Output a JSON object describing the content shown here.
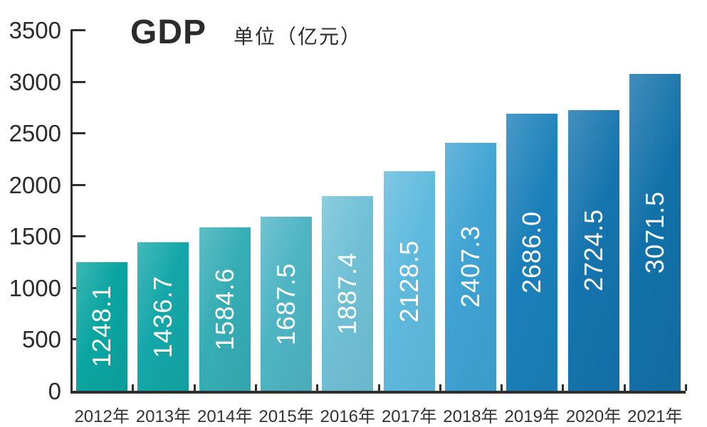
{
  "header": {
    "title": "GDP",
    "unit": "单位（亿元）"
  },
  "colors": {
    "axis": "#2e2e2e",
    "tick_label": "#2b2b2b",
    "x_label": "#333333",
    "bar_value_label": "#ffffff",
    "background": "#ffffff"
  },
  "chart_data": {
    "type": "bar",
    "title": "GDP",
    "unit_label": "单位（亿元）",
    "categories": [
      "2012年",
      "2013年",
      "2014年",
      "2015年",
      "2016年",
      "2017年",
      "2018年",
      "2019年",
      "2020年",
      "2021年"
    ],
    "values": [
      1248.1,
      1436.7,
      1584.6,
      1687.5,
      1887.4,
      2128.5,
      2407.3,
      2686.0,
      2724.5,
      3071.5
    ],
    "value_labels": [
      "1248.1",
      "1436.7",
      "1584.6",
      "1687.5",
      "1887.4",
      "2128.5",
      "2407.3",
      "2686.0",
      "2724.5",
      "3071.5"
    ],
    "bar_colors": [
      "#0ba5a1",
      "#14a7a9",
      "#36adb5",
      "#4eb4c4",
      "#70c0d5",
      "#5fbadd",
      "#3fa3d3",
      "#1b80ba",
      "#1574ae",
      "#1271a9"
    ],
    "y_ticks": [
      0,
      500,
      1000,
      1500,
      2000,
      2500,
      3000,
      3500
    ],
    "y_tick_labels": [
      "0",
      "500",
      "1000",
      "1500",
      "2000",
      "2500",
      "3000",
      "3500"
    ],
    "ylim": [
      0,
      3500
    ],
    "grid": false,
    "legend": null,
    "value_label_position": "inside-center",
    "value_label_rotation": -90
  }
}
